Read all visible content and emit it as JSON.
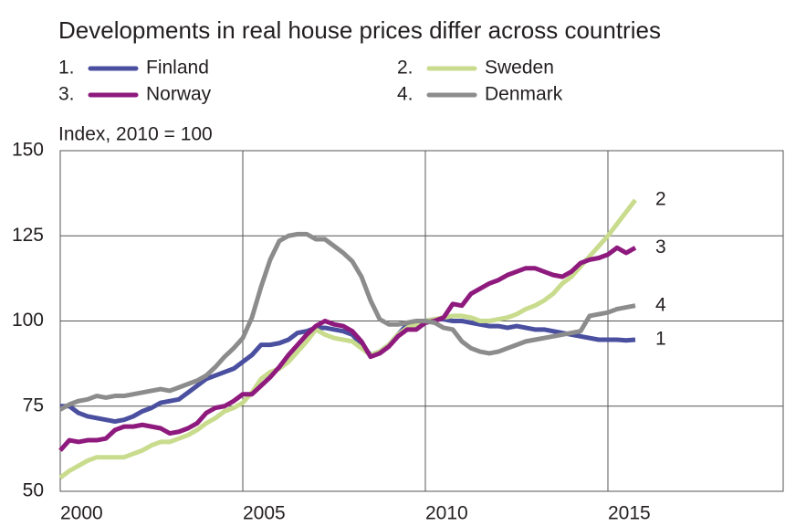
{
  "chart_data": {
    "type": "line",
    "title": "Developments in real house prices differ across countries",
    "y_label": "Index, 2010 = 100",
    "x": [
      2000,
      2000.25,
      2000.5,
      2000.75,
      2001,
      2001.25,
      2001.5,
      2001.75,
      2002,
      2002.25,
      2002.5,
      2002.75,
      2003,
      2003.25,
      2003.5,
      2003.75,
      2004,
      2004.25,
      2004.5,
      2004.75,
      2005,
      2005.25,
      2005.5,
      2005.75,
      2006,
      2006.25,
      2006.5,
      2006.75,
      2007,
      2007.25,
      2007.5,
      2007.75,
      2008,
      2008.25,
      2008.5,
      2008.75,
      2009,
      2009.25,
      2009.5,
      2009.75,
      2010,
      2010.25,
      2010.5,
      2010.75,
      2011,
      2011.25,
      2011.5,
      2011.75,
      2012,
      2012.25,
      2012.5,
      2012.75,
      2013,
      2013.25,
      2013.5,
      2013.75,
      2014,
      2014.25,
      2014.5,
      2014.75,
      2015,
      2015.25,
      2015.5,
      2015.75
    ],
    "series": [
      {
        "name": "Finland",
        "label": "1.",
        "end_label": "1",
        "color": "#4a4f9f",
        "values": [
          75,
          75,
          73,
          72,
          71.5,
          71,
          70.5,
          71,
          72,
          73.5,
          74.5,
          76,
          76.5,
          77,
          79,
          81,
          83,
          84,
          85,
          86,
          88,
          90,
          93,
          93,
          93.5,
          94.5,
          96.5,
          97,
          98,
          98,
          97.5,
          97,
          96,
          93,
          90,
          91,
          93,
          96,
          99,
          99.5,
          100,
          100.5,
          100.5,
          100,
          100,
          99.5,
          99,
          98.5,
          98.5,
          98,
          98.5,
          98,
          97.5,
          97.5,
          97,
          96.5,
          96,
          95.5,
          95,
          94.5,
          94.5,
          94.5,
          94.3,
          94.5
        ]
      },
      {
        "name": "Sweden",
        "label": "2.",
        "end_label": "2",
        "color": "#c9dc8d",
        "values": [
          54,
          56,
          57.5,
          59,
          60,
          60,
          60,
          60,
          61,
          62,
          63.5,
          64.5,
          64.5,
          65.5,
          66.5,
          68,
          70,
          71.5,
          73.5,
          74.5,
          76,
          79,
          83,
          85,
          86,
          88,
          91,
          94,
          97.5,
          96,
          95,
          94.5,
          94,
          92,
          90,
          91,
          93,
          96,
          98,
          99,
          100,
          100.5,
          101,
          101.5,
          101.5,
          101,
          100,
          100,
          100.5,
          101,
          102,
          103.5,
          104.5,
          106,
          108,
          111,
          113,
          116,
          119,
          122,
          125,
          128.5,
          132,
          135.5
        ]
      },
      {
        "name": "Norway",
        "label": "3.",
        "end_label": "3",
        "color": "#8e1a7e",
        "values": [
          62,
          65,
          64.5,
          65,
          65,
          65.5,
          68,
          69,
          69,
          69.5,
          69,
          68.5,
          67,
          67.5,
          68.5,
          70,
          73,
          74.5,
          75,
          76.5,
          78.5,
          78.5,
          81,
          83.5,
          86.5,
          90,
          93,
          96,
          98.5,
          100,
          99,
          98.5,
          97,
          94,
          89.5,
          90.5,
          92.5,
          95.5,
          97.5,
          97.5,
          99.5,
          100,
          101,
          105,
          104.5,
          108,
          109.5,
          111,
          112,
          113.5,
          114.5,
          115.5,
          115.5,
          114.5,
          113.5,
          113,
          114.5,
          117,
          118,
          118.5,
          119.5,
          121.5,
          120,
          121.5
        ]
      },
      {
        "name": "Denmark",
        "label": "4.",
        "end_label": "4",
        "color": "#8c8c8c",
        "values": [
          74,
          75.5,
          76.5,
          77,
          78,
          77.5,
          78,
          78,
          78.5,
          79,
          79.5,
          80,
          79.5,
          80.5,
          81.5,
          82.5,
          84,
          86.5,
          89.5,
          92,
          95,
          101,
          110,
          118,
          123.5,
          125,
          125.5,
          125.5,
          124,
          124,
          122,
          120,
          117.5,
          113,
          106,
          100.5,
          99,
          99,
          99.5,
          100,
          100,
          99.5,
          98,
          97.5,
          94,
          92,
          91,
          90.5,
          91,
          92,
          93,
          94,
          94.5,
          95,
          95.5,
          96,
          96.5,
          97,
          101.5,
          102,
          102.5,
          103.5,
          104,
          104.5
        ]
      }
    ],
    "xlim": [
      2000,
      2019.8
    ],
    "ylim": [
      50,
      150
    ],
    "xticks": [
      2000,
      2005,
      2010,
      2015
    ],
    "yticks": [
      50,
      75,
      100,
      125,
      150
    ],
    "grid": true
  }
}
